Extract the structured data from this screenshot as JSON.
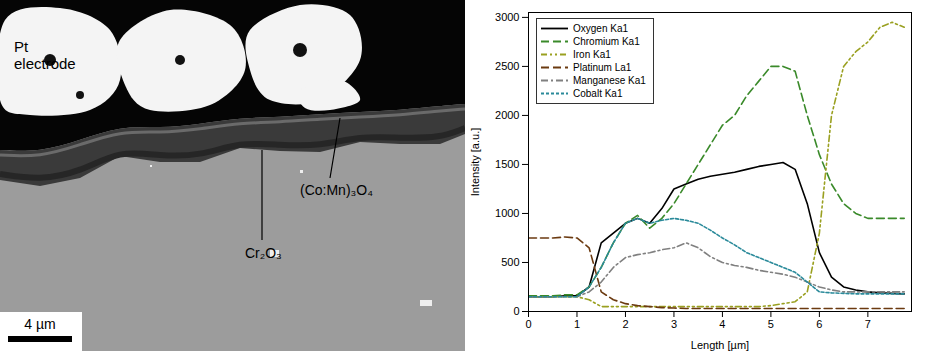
{
  "micrograph": {
    "labels": {
      "electrode": [
        "Pt",
        "electrode"
      ],
      "outer_layer": "(Co:Mn)₃O₄",
      "inner_layer": "Cr₂O₃"
    },
    "scale_bar": "4 µm"
  },
  "chart_data": {
    "type": "line",
    "x_label": "Length [µm]",
    "y_label": "Intensity [a.u.]",
    "x": [
      0,
      0.25,
      0.5,
      0.75,
      1,
      1.25,
      1.5,
      1.75,
      2,
      2.25,
      2.5,
      2.75,
      3,
      3.25,
      3.5,
      3.75,
      4,
      4.25,
      4.5,
      4.75,
      5,
      5.25,
      5.5,
      5.75,
      6,
      6.25,
      6.5,
      6.75,
      7,
      7.25,
      7.5,
      7.75
    ],
    "series": [
      {
        "name": "Oxygen Ka1",
        "color": "#000000",
        "line_style": "solid",
        "values": [
          150,
          150,
          150,
          160,
          160,
          250,
          700,
          800,
          900,
          950,
          900,
          1050,
          1250,
          1300,
          1350,
          1380,
          1400,
          1420,
          1450,
          1480,
          1500,
          1520,
          1450,
          1100,
          600,
          350,
          250,
          220,
          200,
          190,
          185,
          180
        ]
      },
      {
        "name": "Chromium Ka1",
        "color": "#3a8a2a",
        "line_style": "dashed",
        "values": [
          160,
          160,
          160,
          170,
          170,
          250,
          450,
          700,
          900,
          980,
          850,
          950,
          1100,
          1300,
          1500,
          1700,
          1900,
          2000,
          2200,
          2350,
          2500,
          2500,
          2450,
          2000,
          1600,
          1300,
          1100,
          1000,
          950,
          950,
          950,
          950
        ]
      },
      {
        "name": "Iron Ka1",
        "color": "#9aa020",
        "line_style": "dashdotdot",
        "values": [
          150,
          150,
          150,
          150,
          150,
          120,
          50,
          50,
          50,
          50,
          50,
          50,
          50,
          50,
          50,
          50,
          50,
          50,
          50,
          50,
          60,
          80,
          100,
          200,
          800,
          2000,
          2500,
          2650,
          2750,
          2900,
          2950,
          2900
        ]
      },
      {
        "name": "Platinum La1",
        "color": "#6b3a10",
        "line_style": "dashed",
        "values": [
          750,
          750,
          750,
          760,
          750,
          650,
          200,
          120,
          80,
          60,
          50,
          40,
          35,
          30,
          30,
          30,
          30,
          30,
          30,
          30,
          30,
          30,
          30,
          30,
          30,
          30,
          30,
          30,
          30,
          30,
          30,
          30
        ]
      },
      {
        "name": "Manganese Ka1",
        "color": "#808080",
        "line_style": "dashdot",
        "values": [
          150,
          150,
          150,
          150,
          150,
          200,
          300,
          450,
          550,
          580,
          600,
          630,
          650,
          700,
          650,
          560,
          500,
          470,
          450,
          420,
          400,
          380,
          350,
          300,
          250,
          220,
          200,
          200,
          200,
          200,
          200,
          200
        ]
      },
      {
        "name": "Cobalt Ka1",
        "color": "#2a8a9a",
        "line_style": "shortdash",
        "values": [
          150,
          150,
          150,
          150,
          150,
          250,
          450,
          700,
          900,
          950,
          900,
          930,
          950,
          930,
          900,
          830,
          750,
          680,
          600,
          550,
          500,
          450,
          400,
          300,
          200,
          190,
          185,
          180,
          180,
          180,
          180,
          180
        ]
      }
    ],
    "xlim": [
      0,
      7.9
    ],
    "xticks": [
      0,
      1,
      2,
      3,
      4,
      5,
      6,
      7
    ],
    "ylim": [
      0,
      3050
    ],
    "yticks": [
      0,
      500,
      1000,
      1500,
      2000,
      2500,
      3000
    ],
    "legend": "top-left",
    "grid": false
  }
}
